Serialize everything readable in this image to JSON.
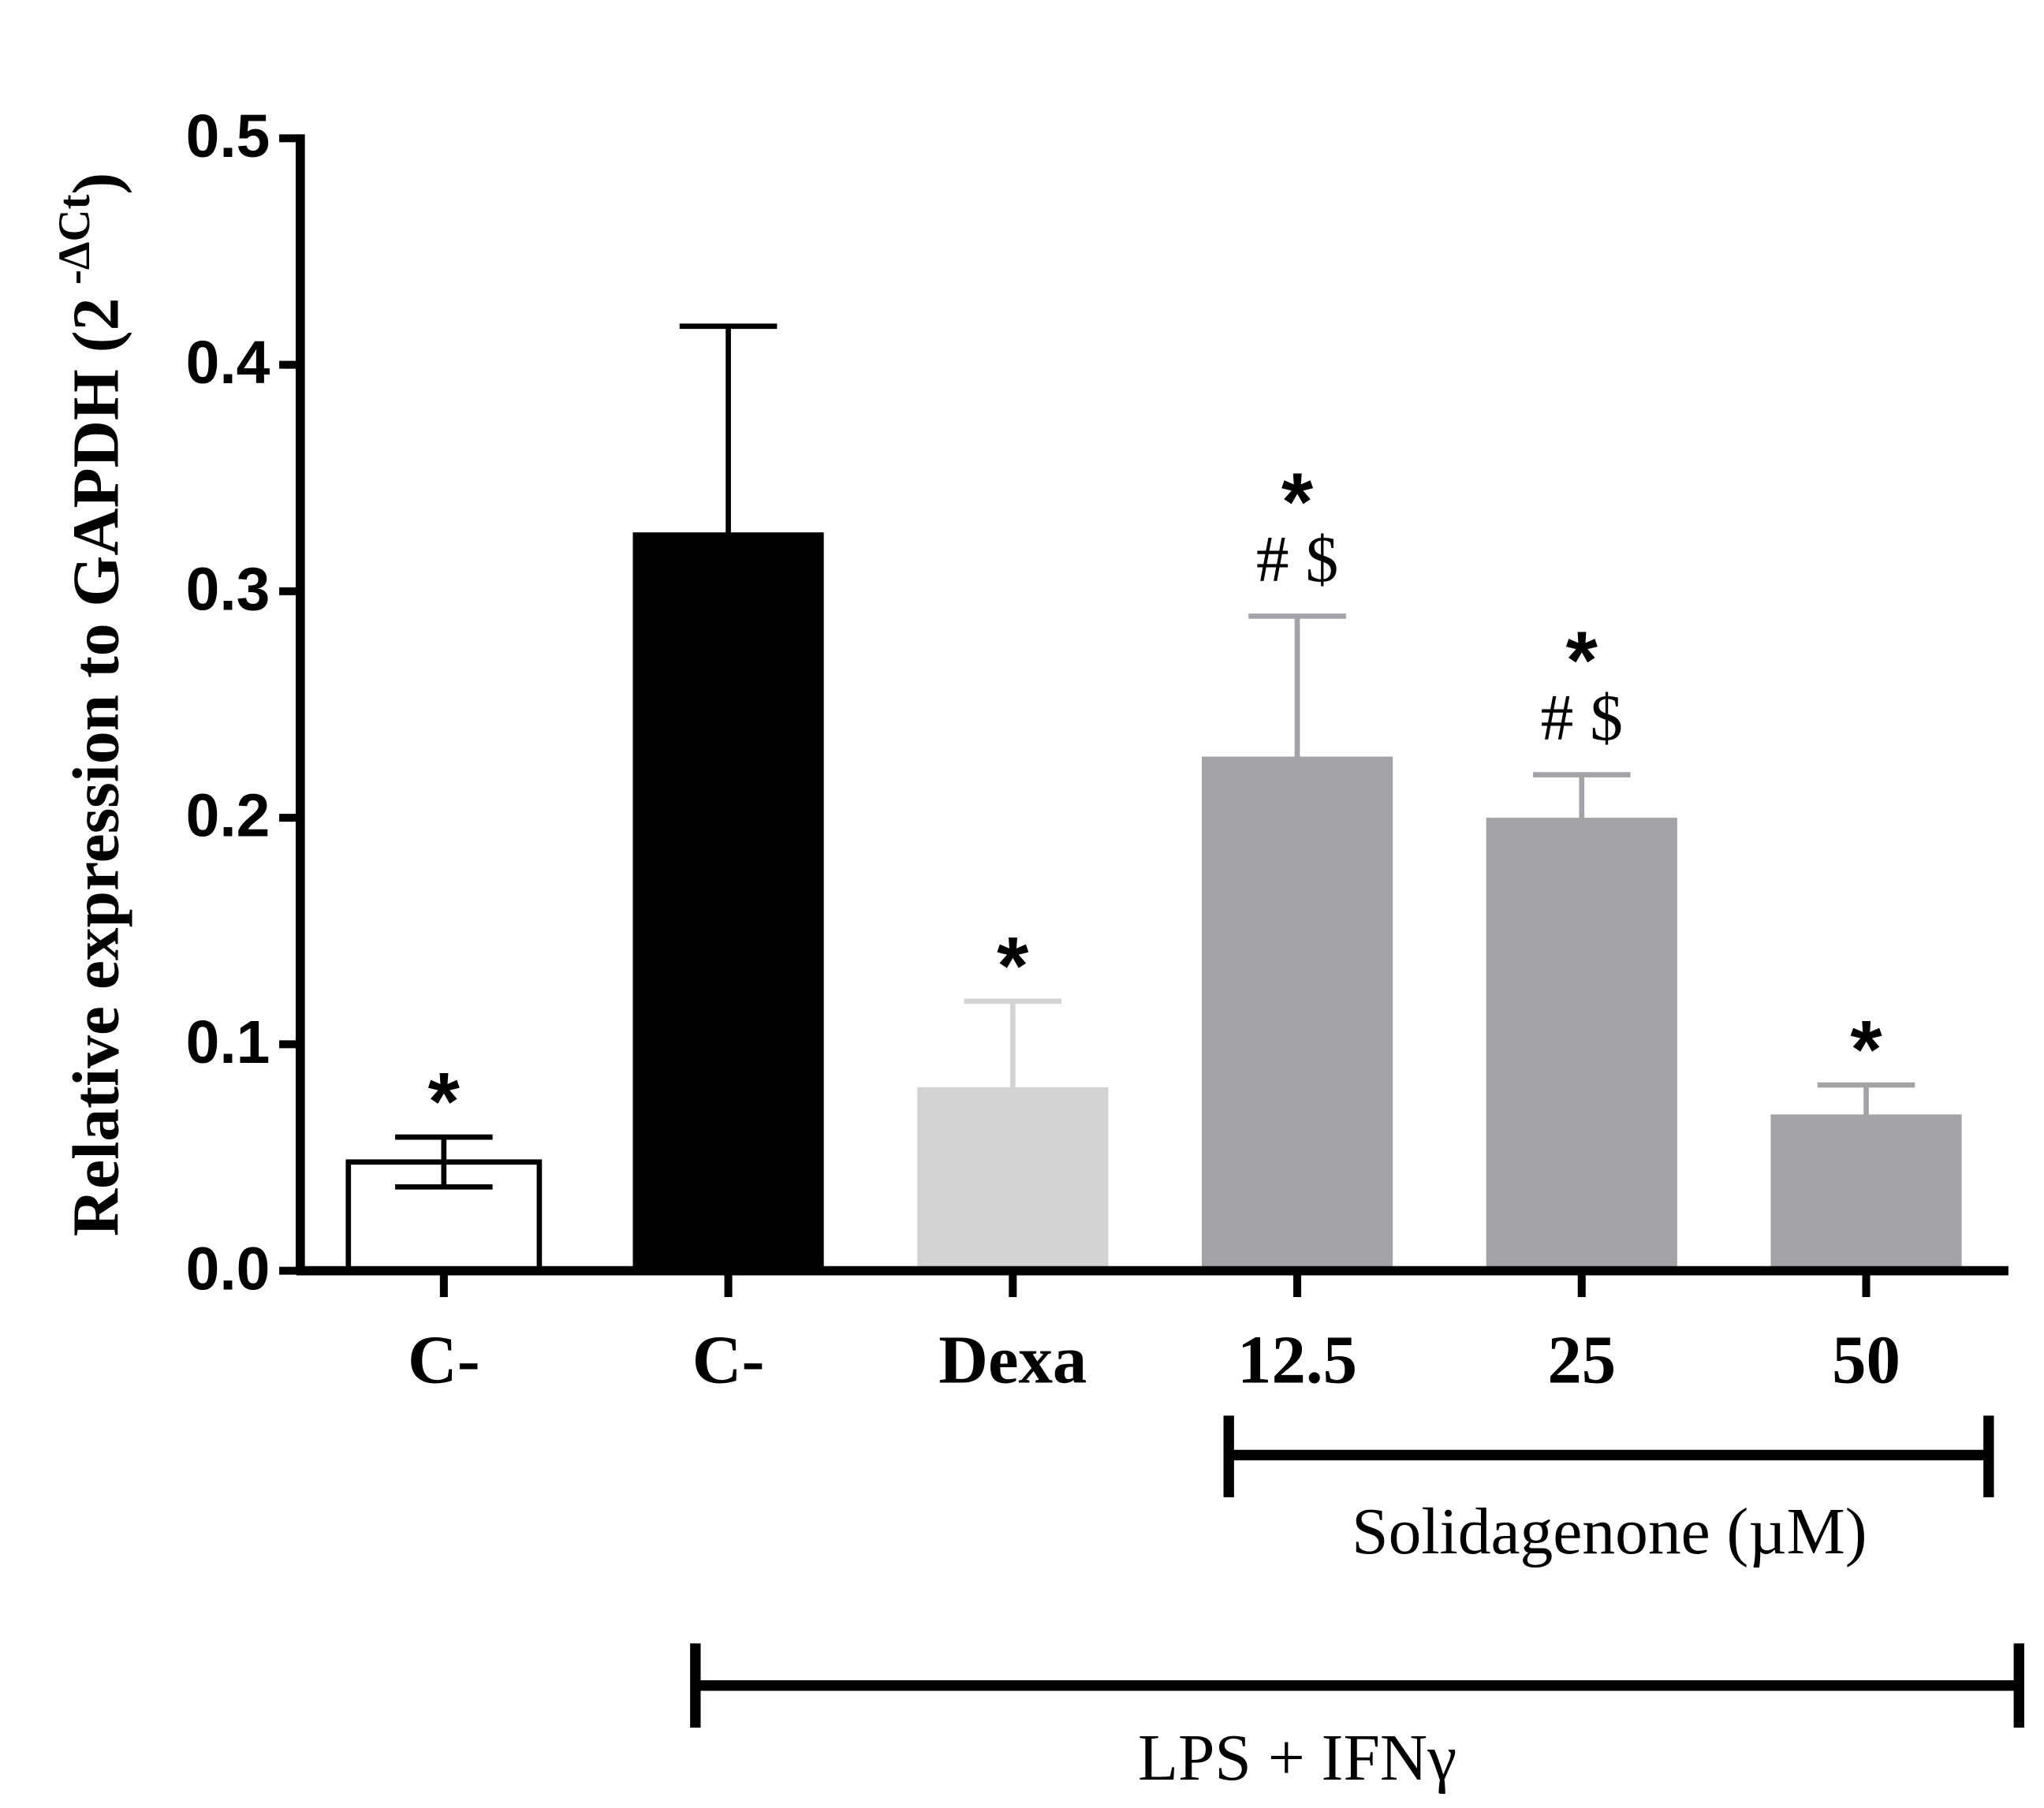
{
  "chart_data": {
    "type": "bar",
    "ylabel": "Relative expression to GAPDH (2",
    "ylabel_superscript": "-ΔCt",
    "ylabel_end": ")",
    "categories": [
      "C-",
      "C-",
      "Dexa",
      "12.5",
      "25",
      "50"
    ],
    "values": [
      0.048,
      0.326,
      0.081,
      0.227,
      0.2,
      0.069
    ],
    "errors": [
      0.011,
      0.091,
      0.038,
      0.062,
      0.019,
      0.013
    ],
    "colors": [
      "#ffffff",
      "#000000",
      "#d3d3d3",
      "#a3a2a6",
      "#a3a2a6",
      "#a3a2a6"
    ],
    "error_colors": [
      "#000000",
      "#000000",
      "#d3d3d3",
      "#a3a2a6",
      "#a3a2a6",
      "#a3a2a6"
    ],
    "significance": [
      [
        "*"
      ],
      [],
      [
        "*"
      ],
      [
        "*",
        "# $"
      ],
      [
        "*",
        "# $"
      ],
      [
        "*"
      ]
    ],
    "group_labels": [
      "Solidagenone (µM)",
      "LPS  + IFNγ"
    ],
    "ylim": [
      0,
      0.5
    ],
    "yticks": [
      {
        "value": 0,
        "label": "0.0"
      },
      0.1,
      0.2,
      0.3,
      0.4,
      0.5
    ]
  }
}
